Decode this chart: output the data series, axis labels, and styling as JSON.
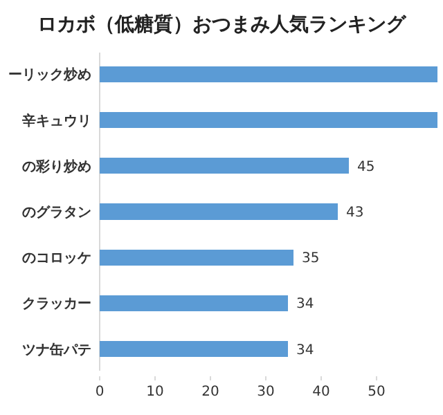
{
  "chart_data": {
    "type": "bar",
    "orientation": "horizontal",
    "title": "ロカボ（低糖質）おつまみ人気ランキング",
    "categories": [
      "ーリック炒め",
      "辛キュウリ",
      "の彩り炒め",
      "のグラタン",
      "のコロッケ",
      "クラッカー",
      "ツナ缶パテ"
    ],
    "values": [
      61,
      61,
      45,
      43,
      35,
      34,
      34
    ],
    "value_labels": [
      null,
      null,
      "45",
      "43",
      "35",
      "34",
      "34"
    ],
    "color": "#5b9bd5",
    "xlim": [
      0,
      61
    ],
    "xticks": [
      0,
      10,
      20,
      30,
      40,
      50
    ],
    "grid": false
  }
}
